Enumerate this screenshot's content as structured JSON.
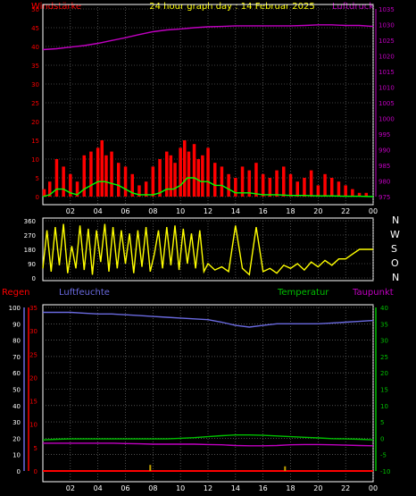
{
  "header": {
    "title": "24 hour graph day : 14 Februar 2025",
    "left_label": "Windstärke",
    "right_label": "Luftdruck"
  },
  "middle": {
    "compass": [
      "N",
      "W",
      "S",
      "O",
      "N"
    ]
  },
  "bottom_header": {
    "regen": "Regen",
    "luftfeuchte": "Luftfeuchte",
    "temperatur": "Temperatur",
    "taupunkt": "Taupunkt"
  },
  "colors": {
    "wind_gust": "#ff0000",
    "wind_avg": "#00ff00",
    "pressure": "#c000c0",
    "direction": "#ffff00",
    "humidity": "#6a6ae0",
    "temperature": "#00c000",
    "dewpoint": "#c000c0",
    "rain": "#ff0000",
    "grid": "#808080",
    "title": "#ffff00"
  },
  "chart_data": [
    {
      "type": "line",
      "name": "wind-pressure",
      "x_ticks": [
        "02",
        "04",
        "06",
        "08",
        "10",
        "12",
        "14",
        "16",
        "18",
        "20",
        "22",
        "00"
      ],
      "x_range": [
        0,
        24
      ],
      "ylim_left": [
        0,
        50
      ],
      "yticks_left": [
        0,
        5,
        10,
        15,
        20,
        25,
        30,
        35,
        40,
        45,
        50
      ],
      "ylim_right": [
        975,
        1035
      ],
      "yticks_right": [
        975,
        980,
        985,
        990,
        995,
        1000,
        1005,
        1010,
        1015,
        1020,
        1025,
        1030,
        1035
      ],
      "grid": true,
      "series": [
        {
          "key": "pressure",
          "axis": "right",
          "x": [
            0,
            1,
            2,
            3,
            4,
            5,
            6,
            7,
            8,
            9,
            10,
            11,
            12,
            13,
            14,
            15,
            16,
            17,
            18,
            19,
            20,
            21,
            22,
            23,
            24
          ],
          "values": [
            1022,
            1022.3,
            1022.8,
            1023.3,
            1024,
            1024.9,
            1025.8,
            1026.8,
            1027.7,
            1028.3,
            1028.6,
            1029,
            1029.3,
            1029.4,
            1029.6,
            1029.6,
            1029.6,
            1029.6,
            1029.6,
            1029.7,
            1029.9,
            1029.9,
            1029.7,
            1029.7,
            1029.4
          ]
        },
        {
          "key": "wind_gust",
          "axis": "left",
          "kind": "bars",
          "x": [
            0.1,
            0.5,
            1.0,
            1.5,
            2.0,
            2.5,
            3.0,
            3.5,
            4.0,
            4.3,
            4.6,
            5.0,
            5.5,
            6.0,
            6.5,
            7.0,
            7.5,
            8.0,
            8.5,
            9.0,
            9.3,
            9.6,
            10.0,
            10.3,
            10.6,
            11.0,
            11.3,
            11.6,
            12.0,
            12.5,
            13.0,
            13.5,
            14.0,
            14.5,
            15.0,
            15.5,
            16.0,
            16.5,
            17.0,
            17.5,
            18.0,
            18.5,
            19.0,
            19.5,
            20.0,
            20.5,
            21.0,
            21.5,
            22.0,
            22.5,
            23.0,
            23.5
          ],
          "values": [
            2,
            4,
            10,
            8,
            6,
            4,
            11,
            12,
            13,
            15,
            11,
            12,
            9,
            8,
            6,
            3,
            4,
            8,
            10,
            12,
            11,
            9,
            13,
            15,
            12,
            14,
            10,
            11,
            13,
            9,
            8,
            6,
            5,
            8,
            7,
            9,
            6,
            5,
            7,
            8,
            6,
            4,
            5,
            7,
            3,
            6,
            5,
            4,
            3,
            2,
            1,
            1
          ]
        },
        {
          "key": "wind_avg",
          "axis": "left",
          "x": [
            0,
            0.5,
            1,
            1.5,
            2,
            2.5,
            3,
            3.5,
            4,
            4.5,
            5,
            5.5,
            6,
            6.5,
            7,
            7.5,
            8,
            8.5,
            9,
            9.5,
            10,
            10.5,
            11,
            11.5,
            12,
            12.5,
            13,
            13.5,
            14,
            14.5,
            15,
            16,
            17,
            18,
            19,
            20,
            21,
            22,
            23,
            24
          ],
          "values": [
            0,
            0.5,
            2,
            2,
            1,
            0.5,
            2,
            3,
            4,
            4,
            3.5,
            3,
            2,
            1,
            0.5,
            0.5,
            0.5,
            1,
            2,
            2,
            3,
            5,
            5,
            4,
            4,
            3,
            3,
            2,
            1,
            1,
            1,
            0.5,
            0.5,
            0.3,
            0.3,
            0.2,
            0.2,
            0.1,
            0.1,
            0
          ]
        }
      ]
    },
    {
      "type": "line",
      "name": "wind-direction",
      "x_range": [
        0,
        24
      ],
      "ylim": [
        0,
        360
      ],
      "yticks": [
        0,
        90,
        180,
        270,
        360
      ],
      "grid": true,
      "series": [
        {
          "key": "direction",
          "x": [
            0,
            0.3,
            0.6,
            0.9,
            1.2,
            1.5,
            1.8,
            2.1,
            2.4,
            2.7,
            3.0,
            3.3,
            3.6,
            3.9,
            4.2,
            4.5,
            4.8,
            5.1,
            5.4,
            5.7,
            6.0,
            6.3,
            6.6,
            6.9,
            7.2,
            7.5,
            7.8,
            8.1,
            8.4,
            8.7,
            9.0,
            9.3,
            9.6,
            9.9,
            10.2,
            10.5,
            10.8,
            11.1,
            11.4,
            11.7,
            12.0,
            12.5,
            13.0,
            13.5,
            14.0,
            14.5,
            15.0,
            15.5,
            16.0,
            16.5,
            17.0,
            17.5,
            18.0,
            18.5,
            19.0,
            19.5,
            20.0,
            20.5,
            21.0,
            21.5,
            22.0,
            22.5,
            23.0,
            23.5,
            24.0
          ],
          "values": [
            60,
            300,
            40,
            320,
            80,
            340,
            30,
            200,
            60,
            330,
            50,
            310,
            20,
            300,
            100,
            340,
            40,
            320,
            60,
            300,
            90,
            280,
            30,
            300,
            70,
            320,
            40,
            150,
            300,
            60,
            320,
            80,
            330,
            50,
            310,
            90,
            280,
            60,
            300,
            40,
            90,
            50,
            70,
            40,
            330,
            60,
            20,
            320,
            40,
            60,
            30,
            80,
            60,
            90,
            50,
            100,
            70,
            110,
            80,
            120,
            120,
            150,
            180,
            180,
            180
          ]
        }
      ]
    },
    {
      "type": "line",
      "name": "humidity-temperature",
      "x_ticks": [
        "02",
        "04",
        "06",
        "08",
        "10",
        "12",
        "14",
        "16",
        "18",
        "20",
        "22",
        "00"
      ],
      "x_range": [
        0,
        24
      ],
      "ylim_humidity": [
        0,
        100
      ],
      "yticks_humidity": [
        0,
        10,
        20,
        30,
        40,
        50,
        60,
        70,
        80,
        90,
        100
      ],
      "ylim_rain": [
        0,
        35
      ],
      "yticks_rain": [
        0,
        5,
        10,
        15,
        20,
        25,
        30,
        35
      ],
      "ylim_temp": [
        -10,
        40
      ],
      "yticks_temp": [
        -10,
        -5,
        0,
        5,
        10,
        15,
        20,
        25,
        30,
        35,
        40
      ],
      "grid": true,
      "series": [
        {
          "key": "humidity",
          "axis": "humidity",
          "x": [
            0,
            1,
            2,
            3,
            4,
            5,
            6,
            7,
            8,
            9,
            10,
            11,
            12,
            13,
            14,
            15,
            16,
            17,
            18,
            19,
            20,
            21,
            22,
            23,
            24
          ],
          "values": [
            97,
            97,
            97,
            96.5,
            96,
            96,
            95.5,
            95,
            94.5,
            94,
            93.5,
            93,
            92.5,
            91,
            89,
            88,
            89,
            90,
            90,
            90,
            90,
            90.5,
            91,
            91.5,
            92
          ]
        },
        {
          "key": "temperature",
          "axis": "temp",
          "x": [
            0,
            1,
            2,
            3,
            4,
            5,
            6,
            7,
            8,
            9,
            10,
            11,
            12,
            13,
            14,
            15,
            16,
            17,
            18,
            19,
            20,
            21,
            22,
            23,
            24
          ],
          "values": [
            -0.5,
            -0.3,
            -0.2,
            -0.2,
            -0.2,
            -0.2,
            -0.2,
            -0.2,
            -0.2,
            -0.2,
            0,
            0.2,
            0.5,
            0.8,
            1,
            1,
            0.9,
            0.7,
            0.5,
            0.3,
            0.1,
            -0.1,
            -0.2,
            -0.3,
            -0.5
          ]
        },
        {
          "key": "dewpoint",
          "axis": "temp",
          "x": [
            0,
            1,
            2,
            3,
            4,
            5,
            6,
            7,
            8,
            9,
            10,
            11,
            12,
            13,
            14,
            15,
            16,
            17,
            18,
            19,
            20,
            21,
            22,
            23,
            24
          ],
          "values": [
            -1.5,
            -1.5,
            -1.5,
            -1.5,
            -1.5,
            -1.5,
            -1.6,
            -1.7,
            -1.8,
            -1.8,
            -1.8,
            -1.8,
            -1.9,
            -2,
            -2.2,
            -2.3,
            -2.3,
            -2.2,
            -2,
            -1.9,
            -1.9,
            -2,
            -2.1,
            -2.2,
            -2.3
          ]
        },
        {
          "key": "rain",
          "axis": "rain",
          "kind": "bars",
          "x": [
            7.8,
            17.6
          ],
          "values": [
            1.3,
            1.0
          ]
        }
      ]
    }
  ]
}
